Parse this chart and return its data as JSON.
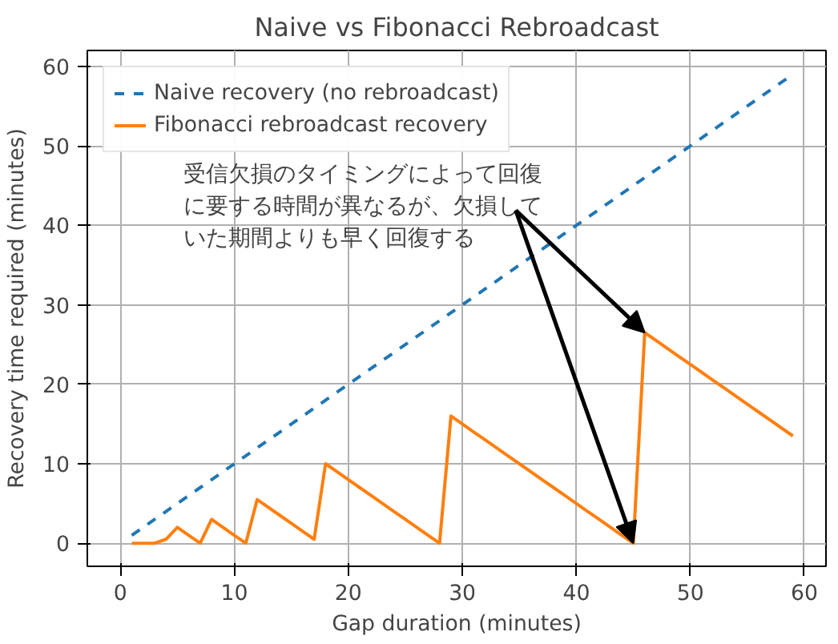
{
  "chart_data": {
    "type": "line",
    "title": "Naive vs Fibonacci Rebroadcast",
    "xlabel": "Gap duration (minutes)",
    "ylabel": "Recovery time required (minutes)",
    "x": [
      1,
      2,
      3,
      4,
      5,
      6,
      7,
      8,
      9,
      10,
      11,
      12,
      13,
      14,
      15,
      16,
      17,
      18,
      19,
      20,
      21,
      22,
      23,
      24,
      25,
      26,
      27,
      28,
      29,
      30,
      31,
      32,
      33,
      34,
      35,
      36,
      37,
      38,
      39,
      40,
      41,
      42,
      43,
      44,
      45,
      46,
      47,
      48,
      49,
      50,
      51,
      52,
      53,
      54,
      55,
      56,
      57,
      58,
      59
    ],
    "series": [
      {
        "name": "Naive recovery (no rebroadcast)",
        "color": "#1f77b4",
        "line_style": "dashed",
        "values": [
          1,
          2,
          3,
          4,
          5,
          6,
          7,
          8,
          9,
          10,
          11,
          12,
          13,
          14,
          15,
          16,
          17,
          18,
          19,
          20,
          21,
          22,
          23,
          24,
          25,
          26,
          27,
          28,
          29,
          30,
          31,
          32,
          33,
          34,
          35,
          36,
          37,
          38,
          39,
          40,
          41,
          42,
          43,
          44,
          45,
          46,
          47,
          48,
          49,
          50,
          51,
          52,
          53,
          54,
          55,
          56,
          57,
          58,
          59
        ]
      },
      {
        "name": "Fibonacci rebroadcast recovery",
        "color": "#ff7f0e",
        "line_style": "solid",
        "values": [
          0,
          0,
          0,
          0.5,
          2,
          1,
          0,
          3,
          2,
          1,
          0,
          5.5,
          4.5,
          3.5,
          2.5,
          1.5,
          0.5,
          10,
          9,
          8,
          7,
          6,
          5,
          4,
          3,
          2,
          1,
          0,
          16,
          15,
          14,
          13,
          12,
          11,
          10,
          9,
          8,
          7,
          6,
          5,
          4,
          3,
          2,
          1,
          0,
          26.5,
          25.5,
          24.5,
          23.5,
          22.5,
          21.5,
          20.5,
          19.5,
          18.5,
          17.5,
          16.5,
          15.5,
          14.5,
          13.5
        ]
      }
    ],
    "xlim": [
      -2.9,
      61.9
    ],
    "ylim": [
      -2.9,
      62
    ],
    "xticks": [
      0,
      10,
      20,
      30,
      40,
      50,
      60
    ],
    "yticks": [
      0,
      10,
      20,
      30,
      40,
      50,
      60
    ],
    "grid": true,
    "legend": "top left",
    "annotations": [
      {
        "text": "受信欠損のタイミングによって回復に要する時間が異なるが、欠損していた期間よりも早く回復する",
        "x": 46,
        "y": 26.5
      }
    ]
  }
}
